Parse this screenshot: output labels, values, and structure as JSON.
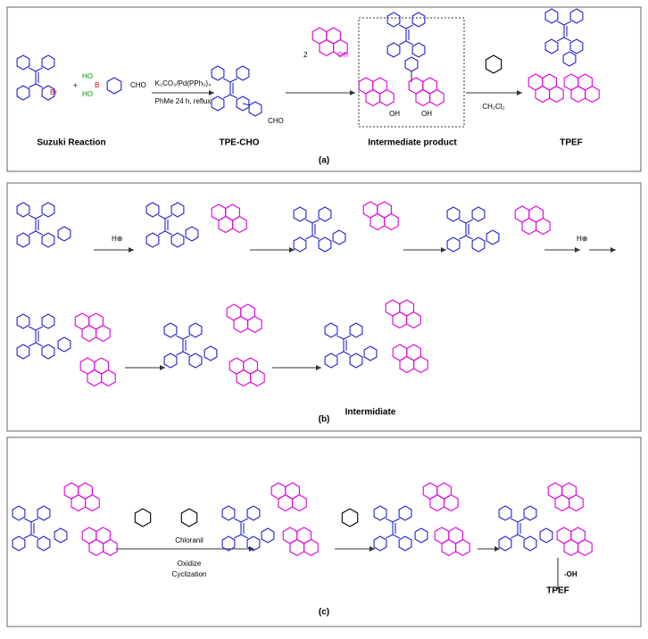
{
  "panel_a": {
    "reactant_br": "Br",
    "plus": "+",
    "boronic_ho_1": "HO",
    "boronic_b": "B",
    "boronic_ho_2": "HO",
    "boronic_cho": "CHO",
    "reagent_top": "K₂CO₃/Pd(PPh₃)₄",
    "reagent_bottom": "PhMe  24 h, reflux",
    "tpe_cho_group": "CHO",
    "julolidinol_coef": "2",
    "julolidinol_oh": "OH",
    "intermediate_oh_1": "OH",
    "intermediate_oh_2": "OH",
    "solvent": "CH₂Cl₂",
    "labels": [
      "Suzuki Reaction",
      "TPE-CHO",
      "Intermediate product",
      "TPEF"
    ],
    "caption": "(a)"
  },
  "panel_b": {
    "acid_1": "H⊕",
    "acid_2": "H⊕",
    "product_label": "Intermidiate",
    "caption": "(b)"
  },
  "panel_c": {
    "oxidant": "Chloranil",
    "condition_1": "Oxidize",
    "condition_2": "Cyclization",
    "leaving": "-OH",
    "product_label": "TPEF",
    "caption": "(c)"
  }
}
